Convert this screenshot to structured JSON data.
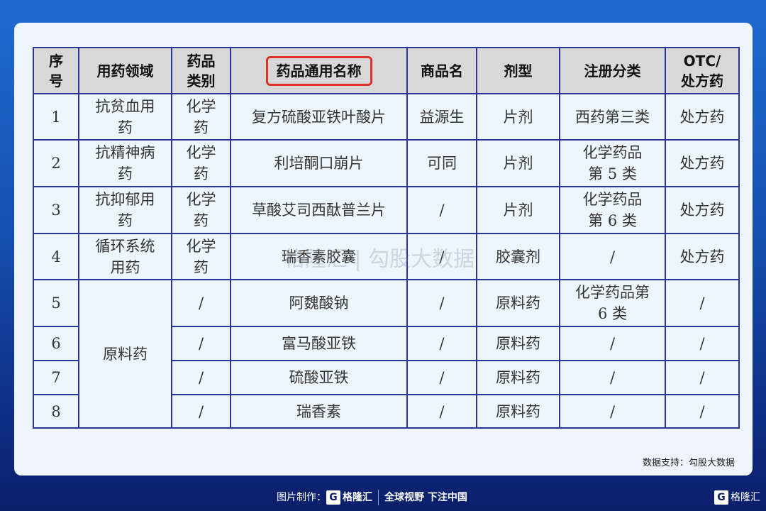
{
  "table": {
    "headers": [
      "序号",
      "用药领域",
      "药品类别",
      "药品通用名称",
      "商品名",
      "剂型",
      "注册分类",
      "OTC/处方药"
    ],
    "header_lines": {
      "seq": [
        "序",
        "号"
      ],
      "cat": [
        "药品",
        "类别"
      ],
      "otc": [
        "OTC/",
        "处方药"
      ]
    },
    "highlighted_header": "药品通用名称",
    "highlight_color": "#e0302a",
    "rows": [
      {
        "seq": "1",
        "field": [
          "抗贫血用",
          "药"
        ],
        "cat": [
          "化学",
          "药"
        ],
        "name": "复方硫酸亚铁叶酸片",
        "brand": "益源生",
        "form": "片剂",
        "reg": [
          "西药第三类"
        ],
        "otc": "处方药"
      },
      {
        "seq": "2",
        "field": [
          "抗精神病",
          "药"
        ],
        "cat": [
          "化学",
          "药"
        ],
        "name": "利培酮口崩片",
        "brand": "可同",
        "form": "片剂",
        "reg": [
          "化学药品",
          "第 5 类"
        ],
        "otc": "处方药"
      },
      {
        "seq": "3",
        "field": [
          "抗抑郁用",
          "药"
        ],
        "cat": [
          "化学",
          "药"
        ],
        "name": "草酸艾司西酞普兰片",
        "brand": "/",
        "form": "片剂",
        "reg": [
          "化学药品",
          "第 6 类"
        ],
        "otc": "处方药"
      },
      {
        "seq": "4",
        "field": [
          "循环系统",
          "用药"
        ],
        "cat": [
          "化学",
          "药"
        ],
        "name": "瑞香素胶囊",
        "brand": "/",
        "form": "胶囊剂",
        "reg": [
          "/"
        ],
        "otc": "处方药"
      },
      {
        "seq": "5",
        "cat": [
          "/"
        ],
        "name": "阿魏酸钠",
        "brand": "/",
        "form": "原料药",
        "reg": [
          "化学药品第",
          "6 类"
        ],
        "otc": "/"
      },
      {
        "seq": "6",
        "cat": [
          "/"
        ],
        "name": "富马酸亚铁",
        "brand": "/",
        "form": "原料药",
        "reg": [
          "/"
        ],
        "otc": "/"
      },
      {
        "seq": "7",
        "cat": [
          "/"
        ],
        "name": "硫酸亚铁",
        "brand": "/",
        "form": "原料药",
        "reg": [
          "/"
        ],
        "otc": "/"
      },
      {
        "seq": "8",
        "cat": [
          "/"
        ],
        "name": "瑞香素",
        "brand": "/",
        "form": "原料药",
        "reg": [
          "/"
        ],
        "otc": "/"
      }
    ],
    "merged_field": "原料药"
  },
  "watermark": "格隆汇 | 勾股大数据",
  "source": "数据支持：勾股大数据",
  "footer": {
    "made_by": "图片制作：",
    "logo": "格隆汇",
    "slogan": "全球视野 下注中国",
    "corner_logo": "格隆汇"
  }
}
